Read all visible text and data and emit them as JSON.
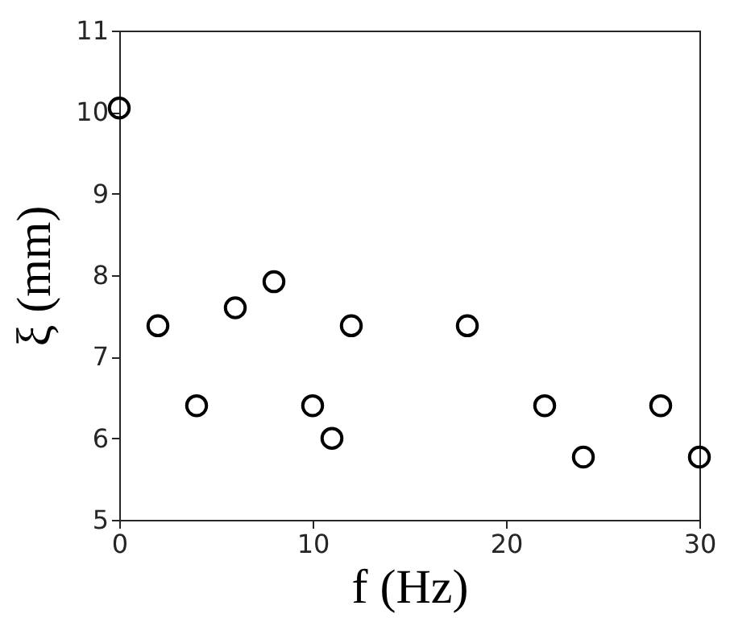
{
  "chart_data": {
    "type": "scatter",
    "xlabel": "f (Hz)",
    "ylabel": "ξ (mm)",
    "x": [
      0,
      2,
      4,
      6,
      8,
      10,
      11,
      12,
      18,
      22,
      24,
      28,
      30
    ],
    "values": [
      10.05,
      7.38,
      6.4,
      7.6,
      7.92,
      6.4,
      6.0,
      7.38,
      7.38,
      6.4,
      5.77,
      6.4,
      5.77
    ],
    "color": "#000000",
    "marker": "circle",
    "xlim": [
      0,
      30
    ],
    "xticks": [
      0,
      10,
      20,
      30
    ],
    "ylim": [
      5,
      11
    ],
    "yticks": [
      5,
      6,
      7,
      8,
      9,
      10,
      11
    ],
    "grid": false
  }
}
